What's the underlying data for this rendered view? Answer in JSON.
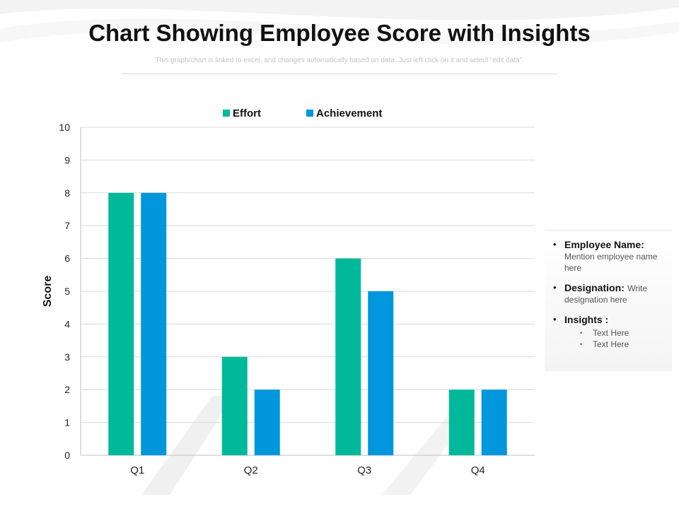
{
  "header": {
    "title": "Chart Showing Employee Score with Insights",
    "subtitle": "This graph/chart is linked to excel, and changes automatically based on data. Just left click on it and select “edit data”."
  },
  "colors": {
    "effort": "#00b99a",
    "achievement": "#0097dc",
    "grid": "#d9d9d9",
    "axis_text": "#222222"
  },
  "chart_data": {
    "type": "bar",
    "title": "",
    "xlabel": "",
    "ylabel": "Score",
    "ylim": [
      0,
      10
    ],
    "yticks": [
      0,
      1,
      2,
      3,
      4,
      5,
      6,
      7,
      8,
      9,
      10
    ],
    "grid": true,
    "legend_position": "top",
    "categories": [
      "Q1",
      "Q2",
      "Q3",
      "Q4"
    ],
    "series": [
      {
        "name": "Effort",
        "values": [
          8,
          3,
          6,
          2
        ]
      },
      {
        "name": "Achievement",
        "values": [
          8,
          2,
          5,
          2
        ]
      }
    ]
  },
  "info": {
    "employee_label": "Employee Name:",
    "employee_text": "Mention employee name here",
    "designation_label": "Designation:",
    "designation_text": "Write designation here",
    "insights_label": "Insights :",
    "insights": [
      "Text Here",
      "Text Here"
    ]
  }
}
